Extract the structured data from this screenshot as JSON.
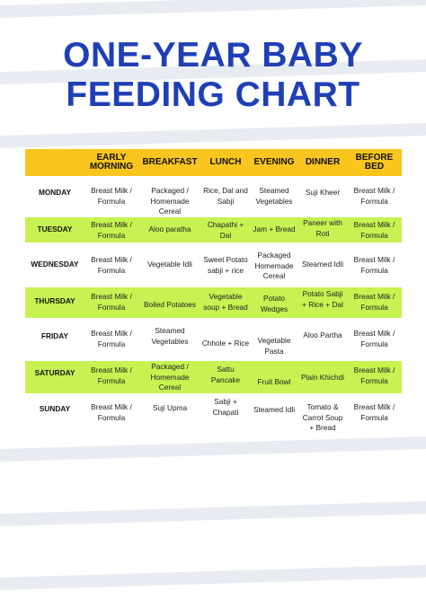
{
  "title": {
    "line1": "ONE-YEAR BABY",
    "line2": "FEEDING CHART"
  },
  "colors": {
    "title": "#1f3fb6",
    "header": "#f9c51e",
    "highlight": "#c7f251",
    "stripe": "#e9ebf2"
  },
  "columns": [
    "EARLY\nMORNING",
    "BREAKFAST",
    "LUNCH",
    "EVENING",
    "DINNER",
    "BEFORE\nBED"
  ],
  "rows": [
    {
      "day": "MONDAY",
      "highlight": false,
      "meals": [
        "Breast Milk /\nFormula",
        "Packaged /\nHomemade\nCereal",
        "Rice, Dal and\nSabji",
        "Steamed\nVegetables",
        "Suji Kheer",
        "Breast Milk /\nFormula"
      ]
    },
    {
      "day": "TUESDAY",
      "highlight": true,
      "meals": [
        "Breast Milk /\nFormula",
        "Aloo paratha",
        "Chapathi +\nDal",
        "Jam + Bread",
        "Paneer with\nRoti",
        "Breast Milk /\nFormula"
      ]
    },
    {
      "day": "WEDNESDAY",
      "highlight": false,
      "meals": [
        "Breast Milk /\nFormula",
        "Vegetable Idli",
        "Sweet Potato\nsabji + rice",
        "Packaged\nHomemade\nCereal",
        "Steamed Idli",
        "Breast Milk /\nFormula"
      ]
    },
    {
      "day": "THURSDAY",
      "highlight": true,
      "meals": [
        "Breast Milk /\nFormula",
        "Boiled Potatoes",
        "Vegetable\nsoup + Bread",
        "Potato\nWedges",
        "Potato Sabji\n+ Rice + Dal",
        "Breast Milk /\nFormula"
      ]
    },
    {
      "day": "FRIDAY",
      "highlight": false,
      "meals": [
        "Breast Milk /\nFormula",
        "Steamed\nVegetables",
        "Chhole + Rice",
        "Vegetable\nPasta",
        "Aloo Partha",
        "Breast Milk /\nFormula"
      ]
    },
    {
      "day": "SATURDAY",
      "highlight": true,
      "meals": [
        "Breast Milk /\nFormula",
        "Packaged /\nHomemade\nCereal",
        "Sattu\nPancake",
        "Fruit Bowl",
        "Plain Khichdi",
        "Breast Milk /\nFormula"
      ]
    },
    {
      "day": "SUNDAY",
      "highlight": false,
      "meals": [
        "Breast Milk /\nFormula",
        "Suji Upma",
        "Sabji +\nChapati",
        "Steamed Idli",
        "Tomato &\nCarrot Soup\n+ Bread",
        "Breast Milk /\nFormula"
      ]
    }
  ]
}
